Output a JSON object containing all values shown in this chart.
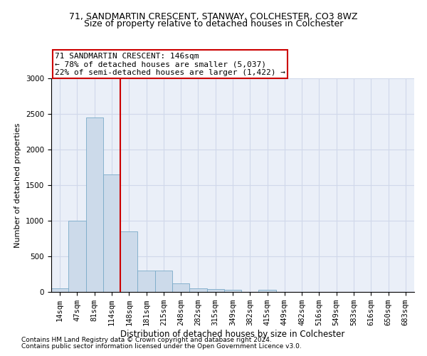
{
  "title1": "71, SANDMARTIN CRESCENT, STANWAY, COLCHESTER, CO3 8WZ",
  "title2": "Size of property relative to detached houses in Colchester",
  "xlabel": "Distribution of detached houses by size in Colchester",
  "ylabel": "Number of detached properties",
  "footnote1": "Contains HM Land Registry data © Crown copyright and database right 2024.",
  "footnote2": "Contains public sector information licensed under the Open Government Licence v3.0.",
  "bar_labels": [
    "14sqm",
    "47sqm",
    "81sqm",
    "114sqm",
    "148sqm",
    "181sqm",
    "215sqm",
    "248sqm",
    "282sqm",
    "315sqm",
    "349sqm",
    "382sqm",
    "415sqm",
    "449sqm",
    "482sqm",
    "516sqm",
    "549sqm",
    "583sqm",
    "616sqm",
    "650sqm",
    "683sqm"
  ],
  "bar_values": [
    50,
    1000,
    2450,
    1650,
    850,
    300,
    300,
    120,
    50,
    40,
    30,
    0,
    30,
    0,
    0,
    0,
    0,
    0,
    0,
    0,
    0
  ],
  "bar_color": "#ccdaea",
  "bar_edge_color": "#7aaac8",
  "vline_color": "#cc0000",
  "annotation_line1": "71 SANDMARTIN CRESCENT: 146sqm",
  "annotation_line2": "← 78% of detached houses are smaller (5,037)",
  "annotation_line3": "22% of semi-detached houses are larger (1,422) →",
  "annotation_box_facecolor": "#ffffff",
  "annotation_box_edgecolor": "#cc0000",
  "ylim": [
    0,
    3000
  ],
  "yticks": [
    0,
    500,
    1000,
    1500,
    2000,
    2500,
    3000
  ],
  "grid_color": "#d0d8ea",
  "bg_color": "#eaeff8",
  "title1_fontsize": 9,
  "title2_fontsize": 9,
  "ylabel_fontsize": 8,
  "xlabel_fontsize": 8.5,
  "tick_fontsize": 7.5,
  "footnote_fontsize": 6.5,
  "annotation_fontsize": 8
}
